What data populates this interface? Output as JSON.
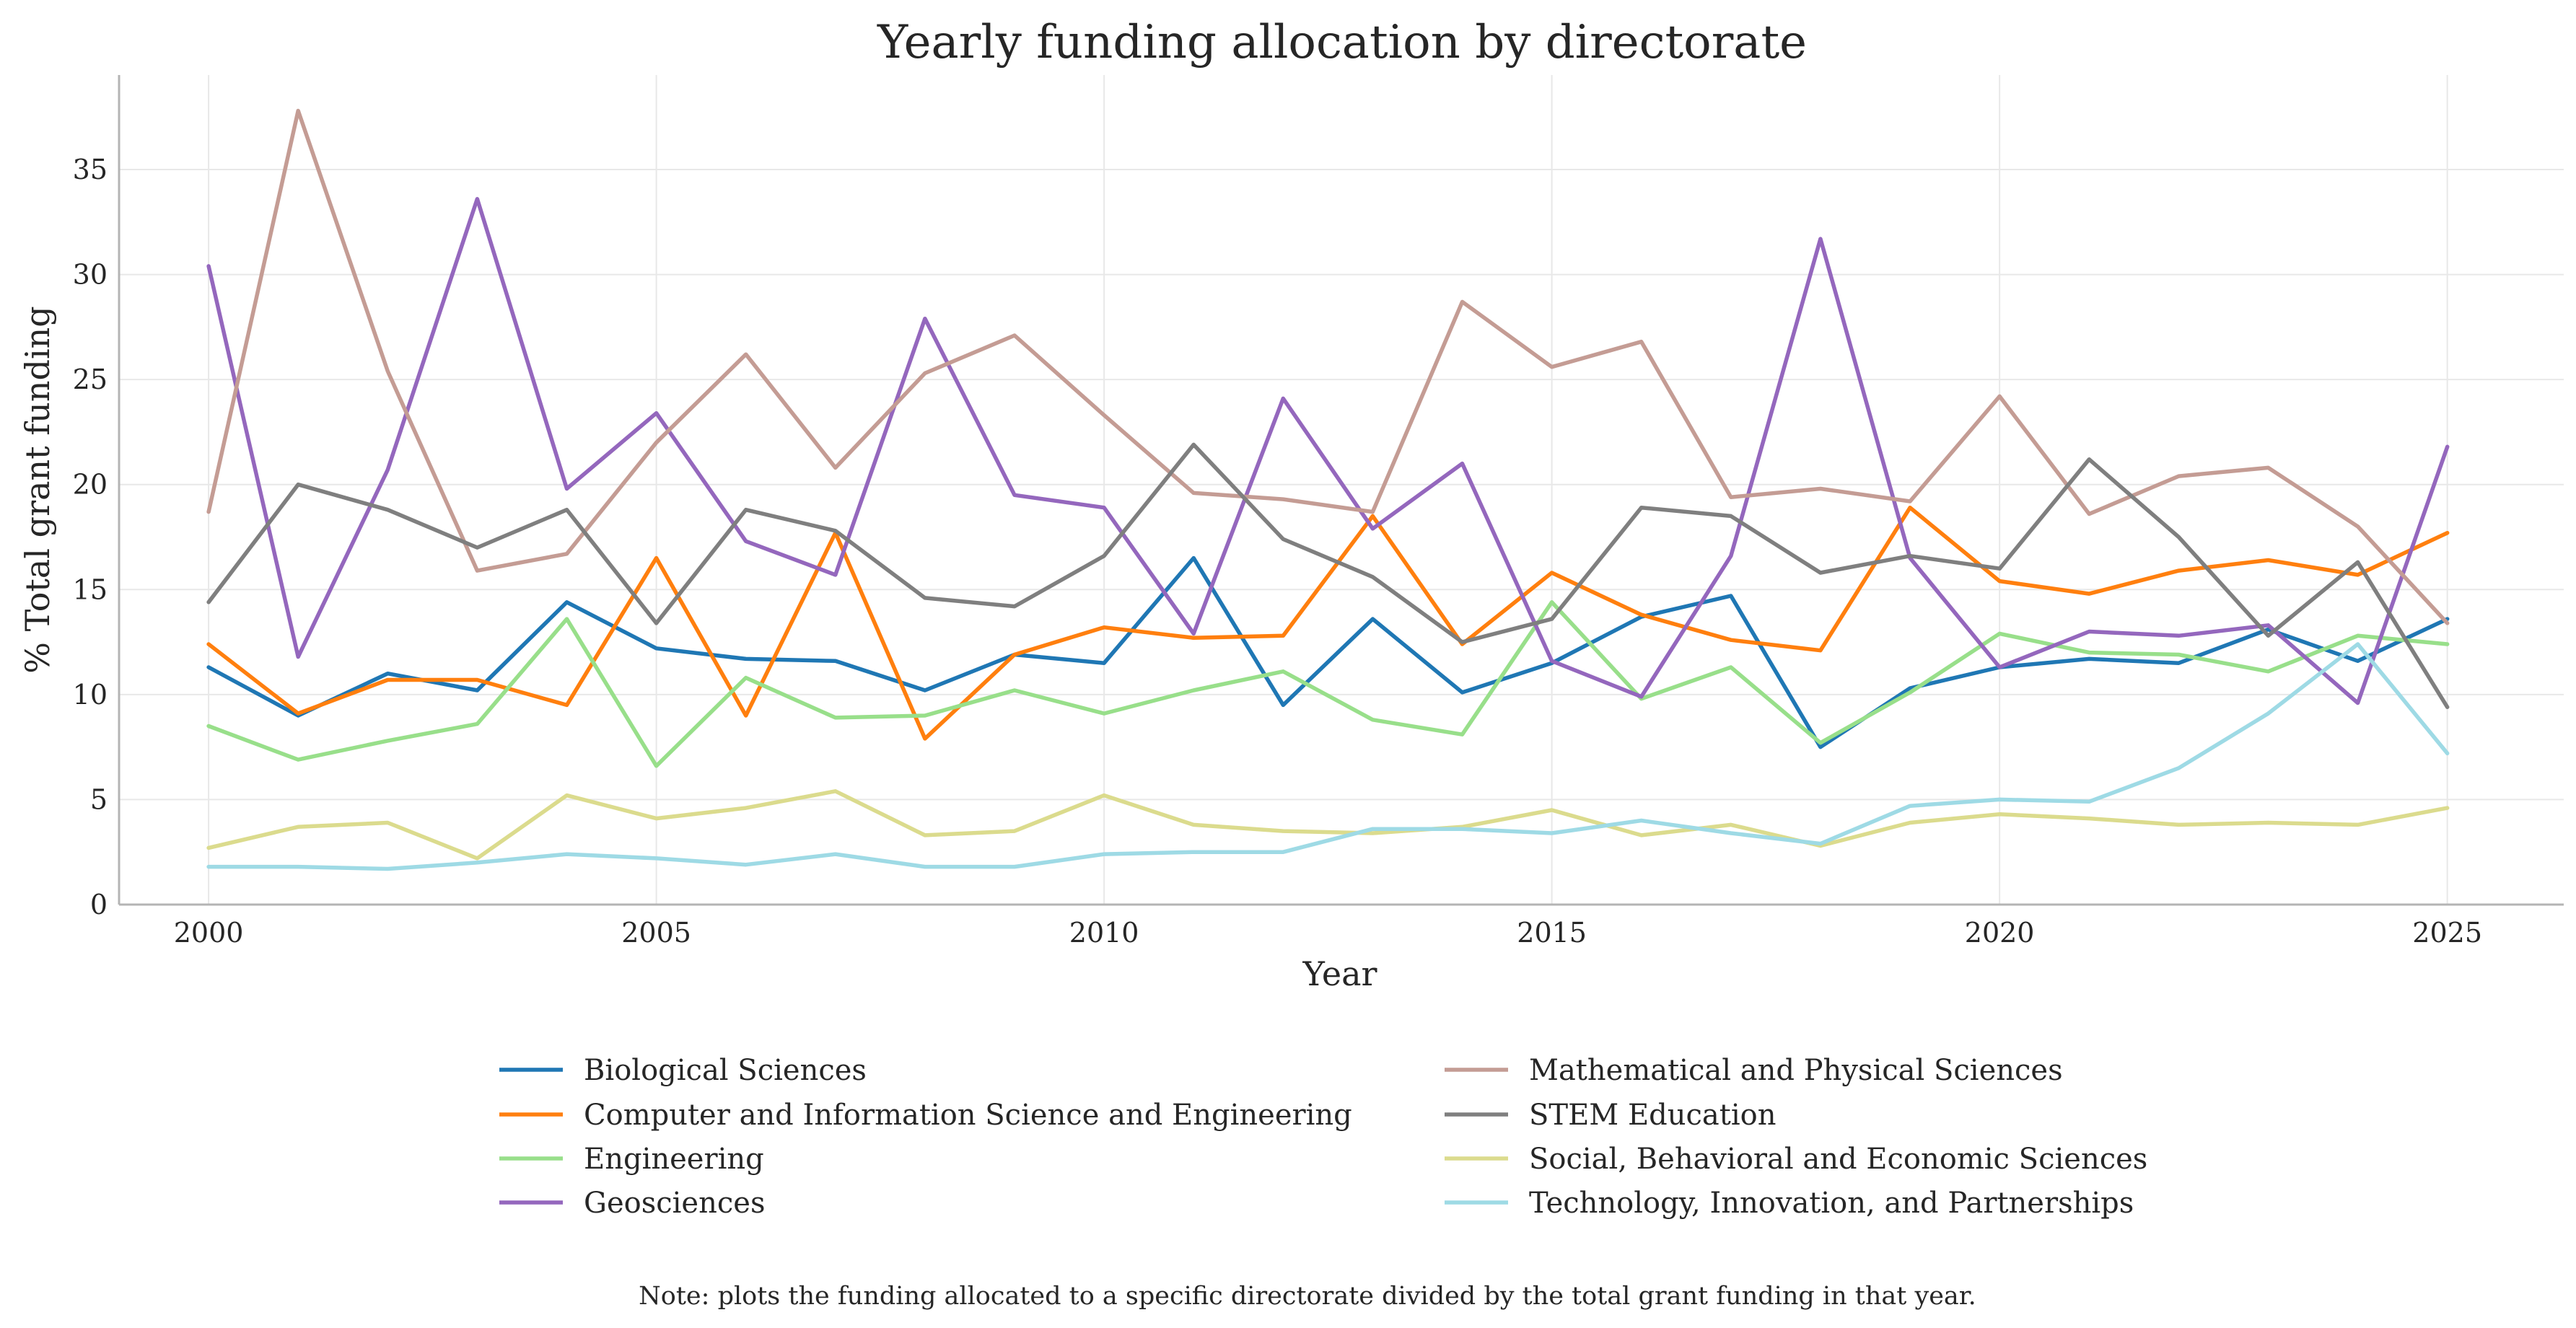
{
  "chart_data": {
    "type": "line",
    "title": "Yearly funding allocation by directorate",
    "xlabel": "Year",
    "ylabel": "% Total grant funding",
    "note": "Note: plots the funding allocated to a specific directorate divided by the total grant funding in that year.",
    "xlim": [
      1999,
      2026.3
    ],
    "ylim": [
      0,
      39.5
    ],
    "xticks": [
      2000,
      2005,
      2010,
      2015,
      2020,
      2025
    ],
    "yticks": [
      0,
      5,
      10,
      15,
      20,
      25,
      30,
      35
    ],
    "grid": true,
    "legend_position": "bottom",
    "x": [
      2000,
      2001,
      2002,
      2003,
      2004,
      2005,
      2006,
      2007,
      2008,
      2009,
      2010,
      2011,
      2012,
      2013,
      2014,
      2015,
      2016,
      2017,
      2018,
      2019,
      2020,
      2021,
      2022,
      2023,
      2024,
      2025
    ],
    "series": [
      {
        "name": "Biological Sciences",
        "color": "#1f77b4",
        "values": [
          11.3,
          9.0,
          11.0,
          10.2,
          14.4,
          12.2,
          11.7,
          11.6,
          10.2,
          11.9,
          11.5,
          16.5,
          9.5,
          13.6,
          10.1,
          11.5,
          13.7,
          14.7,
          7.5,
          10.3,
          11.3,
          11.7,
          11.5,
          13.1,
          11.6,
          13.6
        ]
      },
      {
        "name": "Computer and Information Science and Engineering",
        "color": "#ff7f0e",
        "values": [
          12.4,
          9.1,
          10.7,
          10.7,
          9.5,
          16.5,
          9.0,
          17.7,
          7.9,
          11.9,
          13.2,
          12.7,
          12.8,
          18.5,
          12.4,
          15.8,
          13.8,
          12.6,
          12.1,
          18.9,
          15.4,
          14.8,
          15.9,
          16.4,
          15.7,
          17.7
        ]
      },
      {
        "name": "Engineering",
        "color": "#98df8a",
        "values": [
          8.5,
          6.9,
          7.8,
          8.6,
          13.6,
          6.6,
          10.8,
          8.9,
          9.0,
          10.2,
          9.1,
          10.2,
          11.1,
          8.8,
          8.1,
          14.4,
          9.8,
          11.3,
          7.7,
          10.1,
          12.9,
          12.0,
          11.9,
          11.1,
          12.8,
          12.4
        ]
      },
      {
        "name": "Geosciences",
        "color": "#9467bd",
        "values": [
          30.4,
          11.8,
          20.7,
          33.6,
          19.8,
          23.4,
          17.3,
          15.7,
          27.9,
          19.5,
          18.9,
          12.9,
          24.1,
          17.9,
          21.0,
          11.6,
          9.9,
          16.6,
          31.7,
          16.5,
          11.3,
          13.0,
          12.8,
          13.3,
          9.6,
          21.8
        ]
      },
      {
        "name": "Mathematical and Physical Sciences",
        "color": "#c49c94",
        "values": [
          18.7,
          37.8,
          25.4,
          15.9,
          16.7,
          22.0,
          26.2,
          20.8,
          25.3,
          27.1,
          23.3,
          19.6,
          19.3,
          18.7,
          28.7,
          25.6,
          26.8,
          19.4,
          19.8,
          19.2,
          24.2,
          18.6,
          20.4,
          20.8,
          18.0,
          13.4
        ]
      },
      {
        "name": "STEM Education",
        "color": "#7f7f7f",
        "values": [
          14.4,
          20.0,
          18.8,
          17.0,
          18.8,
          13.4,
          18.8,
          17.8,
          14.6,
          14.2,
          16.6,
          21.9,
          17.4,
          15.6,
          12.5,
          13.6,
          18.9,
          18.5,
          15.8,
          16.6,
          16.0,
          21.2,
          17.5,
          12.8,
          16.3,
          9.4
        ]
      },
      {
        "name": "Social, Behavioral and Economic Sciences",
        "color": "#dbdb8d",
        "values": [
          2.7,
          3.7,
          3.9,
          2.2,
          5.2,
          4.1,
          4.6,
          5.4,
          3.3,
          3.5,
          5.2,
          3.8,
          3.5,
          3.4,
          3.7,
          4.5,
          3.3,
          3.8,
          2.8,
          3.9,
          4.3,
          4.1,
          3.8,
          3.9,
          3.8,
          4.6
        ]
      },
      {
        "name": "Technology, Innovation, and Partnerships",
        "color": "#9edae5",
        "values": [
          1.8,
          1.8,
          1.7,
          2.0,
          2.4,
          2.2,
          1.9,
          2.4,
          1.8,
          1.8,
          2.4,
          2.5,
          2.5,
          3.6,
          3.6,
          3.4,
          4.0,
          3.4,
          2.9,
          4.7,
          5.0,
          4.9,
          6.5,
          9.1,
          12.4,
          7.2
        ]
      }
    ]
  }
}
